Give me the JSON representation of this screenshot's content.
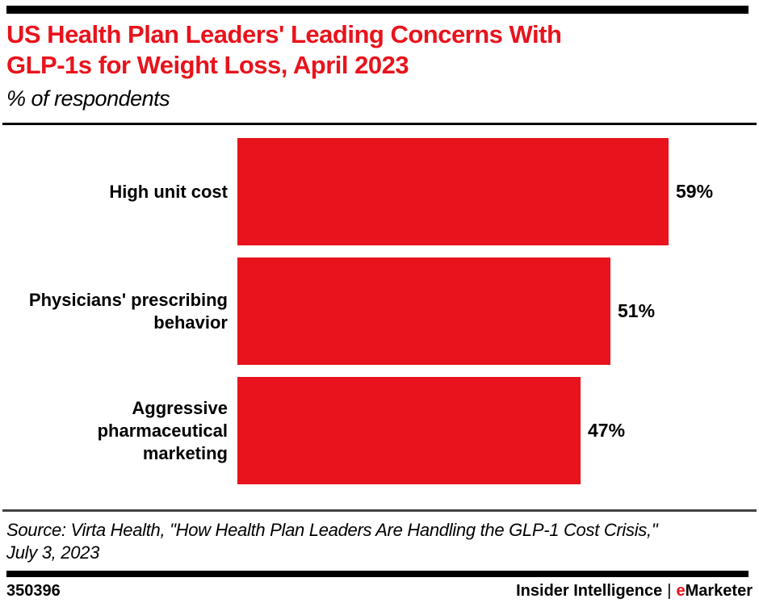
{
  "page": {
    "title_display": "US Health Plan Leaders' Leading Concerns With\nGLP-1s for Weight Loss, April 2023",
    "subtitle": "% of respondents",
    "source": "Source: Virta Health, \"How Health Plan Leaders Are Handling the GLP-1 Cost Crisis,\"\nJuly 3, 2023",
    "footer": {
      "chart_id": "350396",
      "brand_left": "Insider Intelligence",
      "brand_separator": "|",
      "brand_accent_letter": "e",
      "brand_rest": "Marketer"
    }
  },
  "colors": {
    "accent_red": "#E8131C",
    "bar_red": "#E8131C",
    "divider_gray": "#414141",
    "rule_black": "#000000"
  },
  "chart_data": {
    "type": "bar",
    "orientation": "horizontal",
    "title": "US Health Plan Leaders' Leading Concerns With GLP-1s for Weight Loss, April 2023",
    "subtitle": "% of respondents",
    "unit": "%",
    "grid": false,
    "axis_shown": false,
    "value_axis_range": [
      0,
      59
    ],
    "categories": [
      "High unit cost",
      "Physicians' prescribing behavior",
      "Aggressive pharmaceutical marketing"
    ],
    "values": [
      59,
      51,
      47
    ],
    "rows": [
      {
        "label": "High unit cost",
        "value": 59,
        "value_label": "59%"
      },
      {
        "label": "Physicians' prescribing\nbehavior",
        "value": 51,
        "value_label": "51%"
      },
      {
        "label": "Aggressive\npharmaceutical\nmarketing",
        "value": 47,
        "value_label": "47%"
      }
    ]
  }
}
